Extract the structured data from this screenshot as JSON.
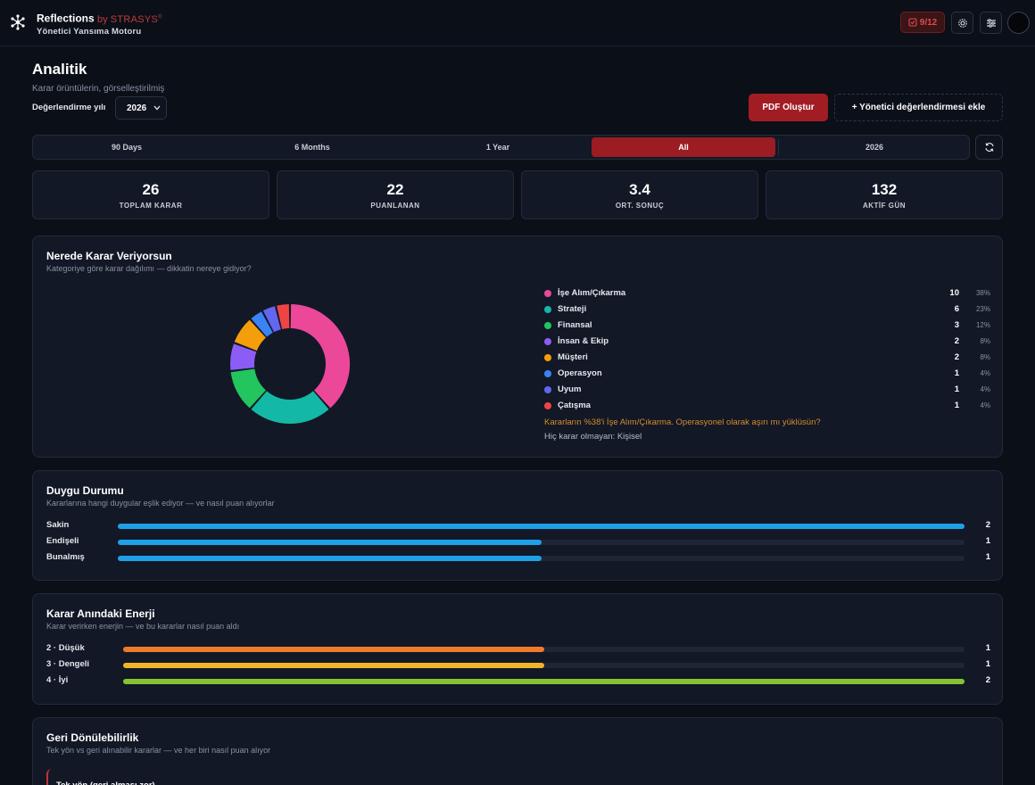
{
  "header": {
    "brand": "Reflections",
    "brand_by": "by",
    "brand_company": "STRASYS",
    "brand_mark": "®",
    "subtitle": "Yönetici Yansıma Motoru",
    "badge": "9/12",
    "icons": [
      "network-logo-icon",
      "checklist-icon",
      "gear-icon",
      "sliders-icon"
    ]
  },
  "page": {
    "title": "Analitik",
    "subtitle": "Karar örüntülerin, görselleştirilmiş",
    "year_label": "Değerlendirme yılı",
    "year_value": "2026",
    "pdf_button": "PDF Oluştur",
    "add_button": "+ Yönetici değerlendirmesi ekle"
  },
  "ranges": [
    {
      "label": "90 Days",
      "active": false
    },
    {
      "label": "6 Months",
      "active": false
    },
    {
      "label": "1 Year",
      "active": false
    },
    {
      "label": "All",
      "active": true
    },
    {
      "label": "2026",
      "active": false
    }
  ],
  "stats": [
    {
      "value": "26",
      "label": "TOPLAM KARAR"
    },
    {
      "value": "22",
      "label": "PUANLANAN"
    },
    {
      "value": "3.4",
      "label": "ORT. SONUÇ"
    },
    {
      "value": "132",
      "label": "AKTİF GÜN"
    }
  ],
  "categories": {
    "title": "Nerede Karar Veriyorsun",
    "subtitle": "Kategoriye göre karar dağılımı — dikkatin nereye gidiyor?",
    "items": [
      {
        "name": "İşe Alım/Çıkarma",
        "count": "10",
        "pct": "38%",
        "color": "#ec4899"
      },
      {
        "name": "Strateji",
        "count": "6",
        "pct": "23%",
        "color": "#14b8a6"
      },
      {
        "name": "Finansal",
        "count": "3",
        "pct": "12%",
        "color": "#22c55e"
      },
      {
        "name": "İnsan & Ekip",
        "count": "2",
        "pct": "8%",
        "color": "#8b5cf6"
      },
      {
        "name": "Müşteri",
        "count": "2",
        "pct": "8%",
        "color": "#f59e0b"
      },
      {
        "name": "Operasyon",
        "count": "1",
        "pct": "4%",
        "color": "#3b82f6"
      },
      {
        "name": "Uyum",
        "count": "1",
        "pct": "4%",
        "color": "#6366f1"
      },
      {
        "name": "Çatışma",
        "count": "1",
        "pct": "4%",
        "color": "#ef4444"
      }
    ],
    "insight": "Kararların %38'i İşe Alım/Çıkarma. Operasyonel olarak aşırı mı yüklüsün?",
    "insight2": "Hiç karar olmayan: Kişisel"
  },
  "emotion": {
    "title": "Duygu Durumu",
    "subtitle": "Kararlarına hangi duygular eşlik ediyor — ve nasıl puan alıyorlar",
    "rows": [
      {
        "label": "Sakin",
        "value": "2",
        "fraction": 1.0,
        "color": "#1ea0e6"
      },
      {
        "label": "Endişeli",
        "value": "1",
        "fraction": 0.5,
        "color": "#1ea0e6"
      },
      {
        "label": "Bunalmış",
        "value": "1",
        "fraction": 0.5,
        "color": "#1ea0e6"
      }
    ]
  },
  "energy": {
    "title": "Karar Anındaki Enerji",
    "subtitle": "Karar verirken enerjin — ve bu kararlar nasıl puan aldı",
    "rows": [
      {
        "label": "2 · Düşük",
        "value": "1",
        "fraction": 0.5,
        "color": "#f07a2a"
      },
      {
        "label": "3 · Dengeli",
        "value": "1",
        "fraction": 0.5,
        "color": "#f0b429"
      },
      {
        "label": "4 · İyi",
        "value": "2",
        "fraction": 1.0,
        "color": "#84c52f"
      }
    ]
  },
  "reversibility": {
    "title": "Geri Dönülebilirlik",
    "subtitle": "Tek yön vs geri alınabilir kararlar — ve her biri nasıl puan alıyor",
    "first_group": "Tek yön (geri alması zor)"
  }
}
